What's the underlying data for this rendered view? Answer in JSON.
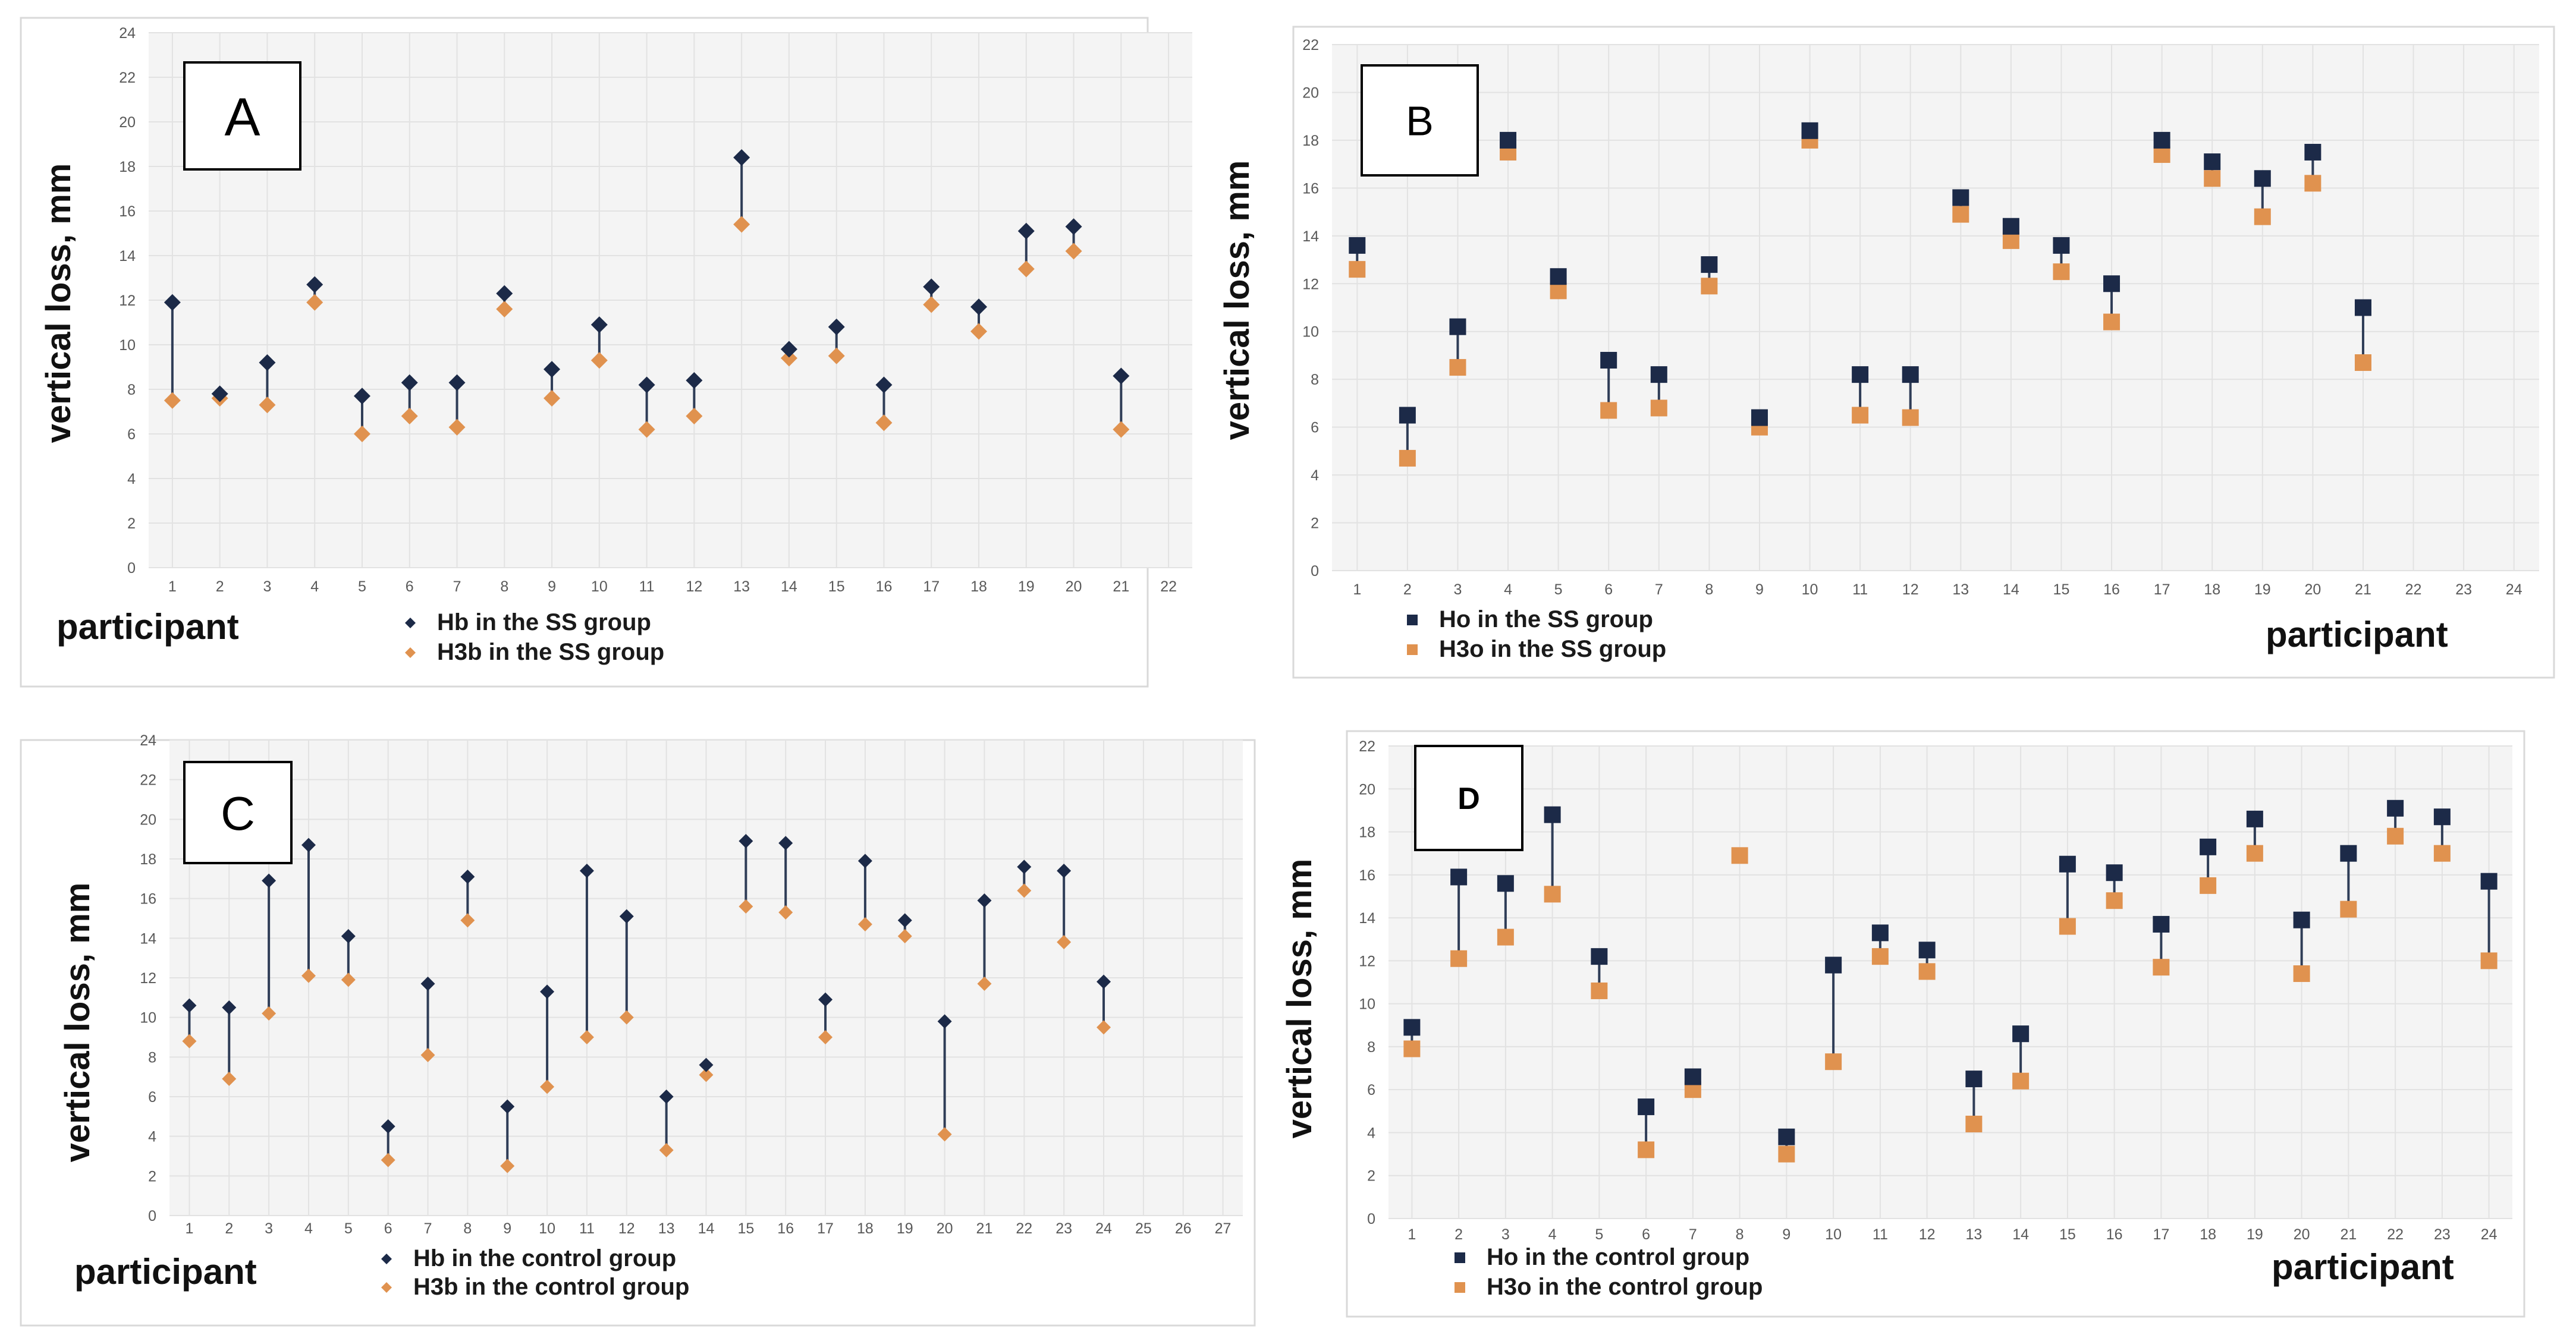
{
  "colors": {
    "top_marker": "#1c2a48",
    "bottom_marker": "#e0924f",
    "stem": "#2f3d57",
    "grid": "#e2e2e2",
    "plot_background": "#f4f4f4"
  },
  "chart_data": [
    {
      "id": "A",
      "type": "scatter",
      "badge": "A",
      "marker": "diamond",
      "xlabel": "participant",
      "ylabel": "vertical loss, mm",
      "ylim": [
        0,
        24
      ],
      "y_ticks": [
        0,
        2,
        4,
        6,
        8,
        10,
        12,
        14,
        16,
        18,
        20,
        22,
        24
      ],
      "x_ticks": [
        1,
        2,
        3,
        4,
        5,
        6,
        7,
        8,
        9,
        10,
        11,
        12,
        13,
        14,
        15,
        16,
        17,
        18,
        19,
        20,
        21,
        22
      ],
      "grid": true,
      "legend_placement": "bottom",
      "x": [
        1,
        2,
        3,
        4,
        5,
        6,
        7,
        8,
        9,
        10,
        11,
        12,
        13,
        14,
        15,
        16,
        17,
        18,
        19,
        20,
        21
      ],
      "series": [
        {
          "name": "Hb in the SS group",
          "role": "top",
          "values": [
            11.9,
            7.8,
            9.2,
            12.7,
            7.7,
            8.3,
            8.3,
            12.3,
            8.9,
            10.9,
            8.2,
            8.4,
            18.4,
            9.8,
            10.8,
            8.2,
            12.6,
            11.7,
            15.1,
            15.3,
            8.6
          ]
        },
        {
          "name": "H3b in the SS group",
          "role": "bottom",
          "values": [
            7.5,
            7.6,
            7.3,
            11.9,
            6.0,
            6.8,
            6.3,
            11.6,
            7.6,
            9.3,
            6.2,
            6.8,
            15.4,
            9.4,
            9.5,
            6.5,
            11.8,
            10.6,
            13.4,
            14.2,
            6.2
          ]
        }
      ]
    },
    {
      "id": "B",
      "type": "scatter",
      "badge": "B",
      "marker": "square",
      "xlabel": "participant",
      "ylabel": "vertical loss, mm",
      "ylim": [
        0,
        22
      ],
      "y_ticks": [
        0,
        2,
        4,
        6,
        8,
        10,
        12,
        14,
        16,
        18,
        20,
        22
      ],
      "x_ticks": [
        1,
        2,
        3,
        4,
        5,
        6,
        7,
        8,
        9,
        10,
        11,
        12,
        13,
        14,
        15,
        16,
        17,
        18,
        19,
        20,
        21,
        22,
        23,
        24
      ],
      "grid": true,
      "legend_placement": "bottom",
      "x": [
        1,
        2,
        3,
        4,
        5,
        6,
        7,
        8,
        9,
        10,
        11,
        12,
        13,
        14,
        15,
        16,
        17,
        18,
        19,
        20,
        21
      ],
      "series": [
        {
          "name": "Ho in the SS group",
          "role": "top",
          "values": [
            13.6,
            6.5,
            10.2,
            18.0,
            12.3,
            8.8,
            8.2,
            12.8,
            6.4,
            18.4,
            8.2,
            8.2,
            15.6,
            14.4,
            13.6,
            12.0,
            18.0,
            17.1,
            16.4,
            17.5,
            11.0
          ]
        },
        {
          "name": "H3o in the SS group",
          "role": "bottom",
          "values": [
            12.6,
            4.7,
            8.5,
            17.5,
            11.7,
            6.7,
            6.8,
            11.9,
            6.0,
            18.0,
            6.5,
            6.4,
            14.9,
            13.8,
            12.5,
            10.4,
            17.4,
            16.4,
            14.8,
            16.2,
            8.7
          ]
        }
      ]
    },
    {
      "id": "C",
      "type": "scatter",
      "badge": "C",
      "marker": "diamond",
      "xlabel": "participant",
      "ylabel": "vertical loss, mm",
      "ylim": [
        0,
        24
      ],
      "y_ticks": [
        0,
        2,
        4,
        6,
        8,
        10,
        12,
        14,
        16,
        18,
        20,
        22,
        24
      ],
      "x_ticks": [
        1,
        2,
        3,
        4,
        5,
        6,
        7,
        8,
        9,
        10,
        11,
        12,
        13,
        14,
        15,
        16,
        17,
        18,
        19,
        20,
        21,
        22,
        23,
        24,
        25,
        26,
        27
      ],
      "grid": true,
      "legend_placement": "bottom",
      "x": [
        1,
        2,
        3,
        4,
        5,
        6,
        7,
        8,
        9,
        10,
        11,
        12,
        13,
        14,
        15,
        16,
        17,
        18,
        19,
        20,
        21,
        22,
        23,
        24
      ],
      "series": [
        {
          "name": "Hb in the control group",
          "role": "top",
          "values": [
            10.6,
            10.5,
            16.9,
            18.7,
            14.1,
            4.5,
            11.7,
            17.1,
            5.5,
            11.3,
            17.4,
            15.1,
            6.0,
            7.6,
            18.9,
            18.8,
            10.9,
            17.9,
            14.9,
            9.8,
            15.9,
            17.6,
            17.4,
            11.8
          ]
        },
        {
          "name": "H3b in the control group",
          "role": "bottom",
          "values": [
            8.8,
            6.9,
            10.2,
            12.1,
            11.9,
            2.8,
            8.1,
            14.9,
            2.5,
            6.5,
            9.0,
            10.0,
            3.3,
            7.1,
            15.6,
            15.3,
            9.0,
            14.7,
            14.1,
            4.1,
            11.7,
            16.4,
            13.8,
            9.5
          ]
        }
      ]
    },
    {
      "id": "D",
      "type": "scatter",
      "badge": "D",
      "marker": "square",
      "xlabel": "participant",
      "ylabel": "vertical loss, mm",
      "ylim": [
        0,
        22
      ],
      "y_ticks": [
        0,
        2,
        4,
        6,
        8,
        10,
        12,
        14,
        16,
        18,
        20,
        22
      ],
      "x_ticks": [
        1,
        2,
        3,
        4,
        5,
        6,
        7,
        8,
        9,
        10,
        11,
        12,
        13,
        14,
        15,
        16,
        17,
        18,
        19,
        20,
        21,
        22,
        23,
        24
      ],
      "grid": true,
      "legend_placement": "bottom",
      "x": [
        1,
        2,
        3,
        4,
        5,
        6,
        7,
        8,
        9,
        10,
        11,
        12,
        13,
        14,
        15,
        16,
        17,
        18,
        19,
        20,
        21,
        22,
        23,
        24
      ],
      "series": [
        {
          "name": "Ho in the control group",
          "role": "top",
          "values": [
            8.9,
            15.9,
            15.6,
            18.8,
            12.2,
            5.2,
            6.6,
            null,
            3.8,
            11.8,
            13.3,
            12.5,
            6.5,
            8.6,
            16.5,
            16.1,
            13.7,
            17.3,
            18.6,
            13.9,
            17.0,
            19.1,
            18.7,
            15.7
          ]
        },
        {
          "name": "H3o in the control group",
          "role": "bottom",
          "values": [
            7.9,
            12.1,
            13.1,
            15.1,
            10.6,
            3.2,
            6.0,
            16.9,
            3.0,
            7.3,
            12.2,
            11.5,
            4.4,
            6.4,
            13.6,
            14.8,
            11.7,
            15.5,
            17.0,
            11.4,
            14.4,
            17.8,
            17.0,
            12.0
          ]
        }
      ]
    }
  ]
}
